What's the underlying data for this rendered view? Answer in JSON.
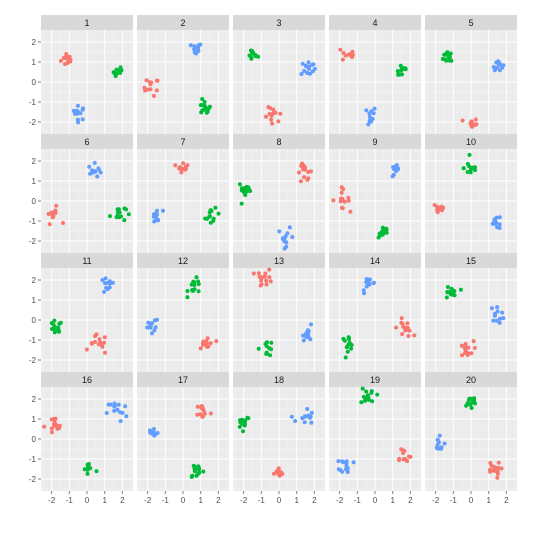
{
  "chart_data": {
    "type": "scatter",
    "layout": "facet-grid 5 columns x 4 rows",
    "xlim": [
      -2.6,
      2.6
    ],
    "ylim": [
      -2.6,
      2.6
    ],
    "x_ticks": [
      -2,
      -1,
      0,
      1,
      2
    ],
    "y_ticks": [
      -2,
      -1,
      0,
      1,
      2
    ],
    "x_tick_labels": [
      "-2",
      "-1",
      "0",
      "1",
      "2"
    ],
    "y_tick_labels": [
      "-2",
      "-1",
      "0",
      "1",
      "2"
    ],
    "grid": true,
    "legend": "none",
    "colors": {
      "red": "#F8766D",
      "green": "#00BA38",
      "blue": "#619CFF"
    },
    "panel_background": "#EBEBEB",
    "strip_background": "#D9D9D9",
    "grid_color": "#FFFFFF",
    "facets": [
      {
        "label": "1",
        "clusters": [
          {
            "group": "red",
            "center": [
              -1.1,
              1.15
            ],
            "spread": 0.18,
            "n": 14
          },
          {
            "group": "blue",
            "center": [
              -0.45,
              -1.55
            ],
            "spread": 0.18,
            "n": 12
          },
          {
            "group": "green",
            "center": [
              1.8,
              0.5
            ],
            "spread": 0.15,
            "n": 12
          }
        ]
      },
      {
        "label": "2",
        "clusters": [
          {
            "group": "red",
            "center": [
              -1.8,
              -0.25
            ],
            "spread": 0.22,
            "n": 12
          },
          {
            "group": "blue",
            "center": [
              0.75,
              1.65
            ],
            "spread": 0.15,
            "n": 12
          },
          {
            "group": "green",
            "center": [
              1.2,
              -1.3
            ],
            "spread": 0.18,
            "n": 14
          }
        ]
      },
      {
        "label": "3",
        "clusters": [
          {
            "group": "green",
            "center": [
              -1.5,
              1.35
            ],
            "spread": 0.15,
            "n": 12
          },
          {
            "group": "red",
            "center": [
              -0.3,
              -1.8
            ],
            "spread": 0.25,
            "n": 12
          },
          {
            "group": "blue",
            "center": [
              1.65,
              0.7
            ],
            "spread": 0.2,
            "n": 14
          }
        ]
      },
      {
        "label": "4",
        "clusters": [
          {
            "group": "red",
            "center": [
              -1.5,
              1.4
            ],
            "spread": 0.2,
            "n": 12
          },
          {
            "group": "blue",
            "center": [
              -0.4,
              -1.7
            ],
            "spread": 0.25,
            "n": 12
          },
          {
            "group": "green",
            "center": [
              1.5,
              0.6
            ],
            "spread": 0.2,
            "n": 12
          }
        ]
      },
      {
        "label": "5",
        "clusters": [
          {
            "group": "green",
            "center": [
              -1.2,
              1.3
            ],
            "spread": 0.18,
            "n": 14
          },
          {
            "group": "red",
            "center": [
              0.05,
              -2.1
            ],
            "spread": 0.15,
            "n": 12
          },
          {
            "group": "blue",
            "center": [
              1.5,
              0.9
            ],
            "spread": 0.15,
            "n": 12
          }
        ]
      },
      {
        "label": "6",
        "clusters": [
          {
            "group": "red",
            "center": [
              -1.9,
              -0.7
            ],
            "spread": 0.2,
            "n": 12
          },
          {
            "group": "blue",
            "center": [
              0.45,
              1.5
            ],
            "spread": 0.18,
            "n": 12
          },
          {
            "group": "green",
            "center": [
              1.75,
              -0.6
            ],
            "spread": 0.22,
            "n": 14
          }
        ]
      },
      {
        "label": "7",
        "clusters": [
          {
            "group": "blue",
            "center": [
              -1.5,
              -0.8
            ],
            "spread": 0.18,
            "n": 12
          },
          {
            "group": "red",
            "center": [
              0.0,
              1.75
            ],
            "spread": 0.15,
            "n": 12
          },
          {
            "group": "green",
            "center": [
              1.65,
              -0.8
            ],
            "spread": 0.2,
            "n": 12
          }
        ]
      },
      {
        "label": "8",
        "clusters": [
          {
            "group": "green",
            "center": [
              -1.9,
              0.55
            ],
            "spread": 0.2,
            "n": 14
          },
          {
            "group": "blue",
            "center": [
              0.4,
              -1.8
            ],
            "spread": 0.22,
            "n": 12
          },
          {
            "group": "red",
            "center": [
              1.45,
              1.45
            ],
            "spread": 0.22,
            "n": 14
          }
        ]
      },
      {
        "label": "9",
        "clusters": [
          {
            "group": "red",
            "center": [
              -1.95,
              0.1
            ],
            "spread": 0.25,
            "n": 14
          },
          {
            "group": "blue",
            "center": [
              1.2,
              1.5
            ],
            "spread": 0.15,
            "n": 12
          },
          {
            "group": "green",
            "center": [
              0.5,
              -1.55
            ],
            "spread": 0.15,
            "n": 14
          }
        ]
      },
      {
        "label": "10",
        "clusters": [
          {
            "group": "red",
            "center": [
              -1.8,
              -0.35
            ],
            "spread": 0.18,
            "n": 14
          },
          {
            "group": "green",
            "center": [
              0.0,
              1.65
            ],
            "spread": 0.2,
            "n": 12
          },
          {
            "group": "blue",
            "center": [
              1.45,
              -1.05
            ],
            "spread": 0.18,
            "n": 12
          }
        ]
      },
      {
        "label": "11",
        "clusters": [
          {
            "group": "green",
            "center": [
              -1.8,
              -0.45
            ],
            "spread": 0.2,
            "n": 14
          },
          {
            "group": "blue",
            "center": [
              1.15,
              1.7
            ],
            "spread": 0.2,
            "n": 12
          },
          {
            "group": "red",
            "center": [
              0.65,
              -1.25
            ],
            "spread": 0.25,
            "n": 14
          }
        ]
      },
      {
        "label": "12",
        "clusters": [
          {
            "group": "blue",
            "center": [
              -1.8,
              -0.3
            ],
            "spread": 0.22,
            "n": 12
          },
          {
            "group": "green",
            "center": [
              0.7,
              1.65
            ],
            "spread": 0.2,
            "n": 14
          },
          {
            "group": "red",
            "center": [
              1.35,
              -1.2
            ],
            "spread": 0.22,
            "n": 14
          }
        ]
      },
      {
        "label": "13",
        "clusters": [
          {
            "group": "red",
            "center": [
              -0.8,
              2.1
            ],
            "spread": 0.22,
            "n": 14
          },
          {
            "group": "green",
            "center": [
              -0.7,
              -1.4
            ],
            "spread": 0.2,
            "n": 12
          },
          {
            "group": "blue",
            "center": [
              1.7,
              -0.65
            ],
            "spread": 0.18,
            "n": 12
          }
        ]
      },
      {
        "label": "14",
        "clusters": [
          {
            "group": "blue",
            "center": [
              -0.35,
              1.75
            ],
            "spread": 0.2,
            "n": 12
          },
          {
            "group": "green",
            "center": [
              -1.55,
              -1.15
            ],
            "spread": 0.18,
            "n": 14
          },
          {
            "group": "red",
            "center": [
              1.7,
              -0.4
            ],
            "spread": 0.22,
            "n": 14
          }
        ]
      },
      {
        "label": "15",
        "clusters": [
          {
            "group": "green",
            "center": [
              -1.2,
              1.35
            ],
            "spread": 0.2,
            "n": 14
          },
          {
            "group": "blue",
            "center": [
              1.5,
              0.3
            ],
            "spread": 0.2,
            "n": 12
          },
          {
            "group": "red",
            "center": [
              -0.3,
              -1.5
            ],
            "spread": 0.22,
            "n": 14
          }
        ]
      },
      {
        "label": "16",
        "clusters": [
          {
            "group": "red",
            "center": [
              -1.9,
              0.6
            ],
            "spread": 0.25,
            "n": 14
          },
          {
            "group": "blue",
            "center": [
              1.7,
              1.4
            ],
            "spread": 0.28,
            "n": 14
          },
          {
            "group": "green",
            "center": [
              0.1,
              -1.5
            ],
            "spread": 0.25,
            "n": 12
          }
        ]
      },
      {
        "label": "17",
        "clusters": [
          {
            "group": "blue",
            "center": [
              -1.7,
              0.3
            ],
            "spread": 0.15,
            "n": 12
          },
          {
            "group": "red",
            "center": [
              1.15,
              1.4
            ],
            "spread": 0.2,
            "n": 12
          },
          {
            "group": "green",
            "center": [
              0.8,
              -1.55
            ],
            "spread": 0.22,
            "n": 14
          }
        ]
      },
      {
        "label": "18",
        "clusters": [
          {
            "group": "green",
            "center": [
              -2.0,
              0.9
            ],
            "spread": 0.18,
            "n": 14
          },
          {
            "group": "red",
            "center": [
              0.0,
              -1.75
            ],
            "spread": 0.15,
            "n": 12
          },
          {
            "group": "blue",
            "center": [
              1.45,
              1.05
            ],
            "spread": 0.25,
            "n": 12
          }
        ]
      },
      {
        "label": "19",
        "clusters": [
          {
            "group": "green",
            "center": [
              -0.4,
              2.2
            ],
            "spread": 0.22,
            "n": 14
          },
          {
            "group": "blue",
            "center": [
              -1.6,
              -1.3
            ],
            "spread": 0.18,
            "n": 14
          },
          {
            "group": "red",
            "center": [
              1.6,
              -0.8
            ],
            "spread": 0.22,
            "n": 12
          }
        ]
      },
      {
        "label": "20",
        "clusters": [
          {
            "group": "green",
            "center": [
              -0.05,
              1.8
            ],
            "spread": 0.22,
            "n": 14
          },
          {
            "group": "blue",
            "center": [
              -1.9,
              -0.3
            ],
            "spread": 0.2,
            "n": 12
          },
          {
            "group": "red",
            "center": [
              1.25,
              -1.55
            ],
            "spread": 0.2,
            "n": 14
          }
        ]
      }
    ]
  }
}
